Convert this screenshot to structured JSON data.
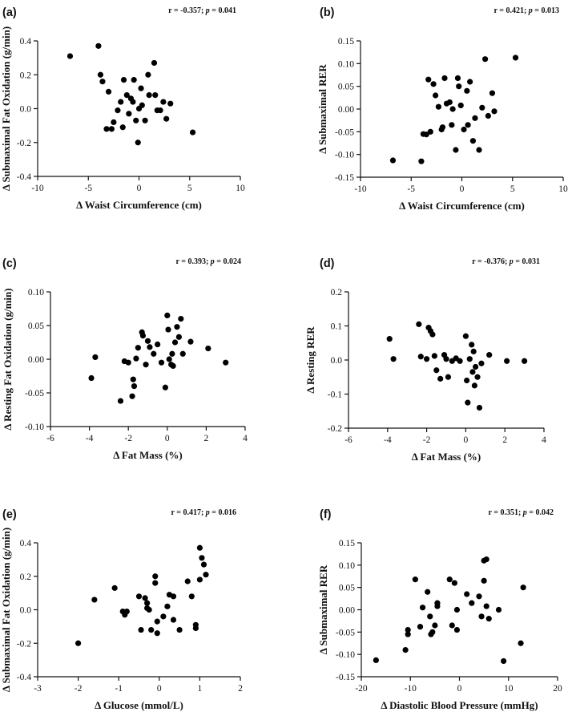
{
  "chart_data": [
    {
      "type": "scatter",
      "panel_label": "(a)",
      "stat": {
        "r": "r = -0.357; ",
        "p_symbol": "p",
        "p": " = 0.041"
      },
      "xlabel": "Δ Waist Circumference (cm)",
      "ylabel": "Δ Submaximal Fat Oxidation (g/min)",
      "xlim": [
        -10,
        10
      ],
      "ylim": [
        -0.4,
        0.4
      ],
      "xticks": [
        -10,
        -5,
        0,
        5,
        10
      ],
      "yticks": [
        -0.4,
        -0.2,
        0.0,
        0.2,
        0.4
      ],
      "xtick_labels": [
        "-10",
        "-5",
        "0",
        "5",
        "10"
      ],
      "ytick_labels": [
        "-0.4",
        "-0.2",
        "0.0",
        "0.2",
        "0.4"
      ],
      "points": [
        [
          -6.8,
          0.31
        ],
        [
          -4.0,
          0.37
        ],
        [
          -3.8,
          0.2
        ],
        [
          -3.6,
          0.16
        ],
        [
          -3.0,
          0.1
        ],
        [
          -3.2,
          -0.12
        ],
        [
          -2.7,
          -0.12
        ],
        [
          -2.5,
          -0.08
        ],
        [
          -2.1,
          -0.01
        ],
        [
          -1.8,
          0.04
        ],
        [
          -1.6,
          -0.11
        ],
        [
          -1.5,
          0.17
        ],
        [
          -1.2,
          0.08
        ],
        [
          -1.0,
          -0.03
        ],
        [
          -0.8,
          0.06
        ],
        [
          -0.6,
          0.04
        ],
        [
          -0.5,
          0.17
        ],
        [
          -0.3,
          -0.07
        ],
        [
          -0.1,
          -0.2
        ],
        [
          0.0,
          0.0
        ],
        [
          0.2,
          0.12
        ],
        [
          0.3,
          0.02
        ],
        [
          0.6,
          -0.07
        ],
        [
          0.9,
          0.2
        ],
        [
          1.0,
          0.08
        ],
        [
          1.5,
          0.27
        ],
        [
          1.6,
          0.08
        ],
        [
          1.8,
          -0.01
        ],
        [
          2.1,
          -0.01
        ],
        [
          2.4,
          0.04
        ],
        [
          2.7,
          -0.06
        ],
        [
          3.1,
          0.03
        ],
        [
          5.3,
          -0.14
        ]
      ]
    },
    {
      "type": "scatter",
      "panel_label": "(b)",
      "stat": {
        "r": "r = 0.421; ",
        "p_symbol": "p",
        "p": " = 0.013"
      },
      "xlabel": "Δ Waist Circumference (cm)",
      "ylabel": "Δ Submaximal RER",
      "xlim": [
        -10,
        10
      ],
      "ylim": [
        -0.15,
        0.15
      ],
      "xticks": [
        -10,
        -5,
        0,
        5,
        10
      ],
      "yticks": [
        -0.15,
        -0.1,
        -0.05,
        0.0,
        0.05,
        0.1,
        0.15
      ],
      "xtick_labels": [
        "-10",
        "-5",
        "0",
        "5",
        "10"
      ],
      "ytick_labels": [
        "-0.15",
        "-0.10",
        "-0.05",
        "0.00",
        "0.05",
        "0.10",
        "0.15"
      ],
      "points": [
        [
          -6.8,
          -0.113
        ],
        [
          -4.0,
          -0.115
        ],
        [
          -3.8,
          -0.055
        ],
        [
          -3.5,
          -0.056
        ],
        [
          -3.3,
          0.065
        ],
        [
          -3.1,
          -0.05
        ],
        [
          -2.8,
          0.055
        ],
        [
          -2.6,
          0.03
        ],
        [
          -2.3,
          0.005
        ],
        [
          -2.0,
          -0.045
        ],
        [
          -1.9,
          -0.04
        ],
        [
          -1.7,
          0.068
        ],
        [
          -1.5,
          0.012
        ],
        [
          -1.2,
          0.015
        ],
        [
          -1.0,
          -0.035
        ],
        [
          -0.9,
          0.0
        ],
        [
          -0.6,
          -0.09
        ],
        [
          -0.4,
          0.068
        ],
        [
          -0.3,
          0.05
        ],
        [
          -0.1,
          0.008
        ],
        [
          0.2,
          -0.045
        ],
        [
          0.5,
          0.04
        ],
        [
          0.6,
          -0.035
        ],
        [
          0.8,
          0.06
        ],
        [
          1.1,
          -0.07
        ],
        [
          1.3,
          -0.02
        ],
        [
          1.7,
          -0.09
        ],
        [
          2.0,
          0.003
        ],
        [
          2.3,
          0.11
        ],
        [
          2.6,
          -0.015
        ],
        [
          3.0,
          0.035
        ],
        [
          3.2,
          -0.005
        ],
        [
          5.3,
          0.113
        ]
      ]
    },
    {
      "type": "scatter",
      "panel_label": "(c)",
      "stat": {
        "r": "r = 0.393; ",
        "p_symbol": "p",
        "p": " = 0.024"
      },
      "xlabel": "Δ Fat Mass (%)",
      "ylabel": "Δ Resting Fat Oxidation (g/min)",
      "xlim": [
        -6,
        4
      ],
      "ylim": [
        -0.1,
        0.1
      ],
      "xticks": [
        -6,
        -4,
        -2,
        0,
        2,
        4
      ],
      "yticks": [
        -0.1,
        -0.05,
        0.0,
        0.05,
        0.1
      ],
      "xtick_labels": [
        "-6",
        "-4",
        "-2",
        "0",
        "2",
        "4"
      ],
      "ytick_labels": [
        "-0.10",
        "-0.05",
        "0.00",
        "0.05",
        "0.10"
      ],
      "points": [
        [
          -3.9,
          -0.028
        ],
        [
          -3.7,
          0.003
        ],
        [
          -2.4,
          -0.062
        ],
        [
          -2.2,
          -0.003
        ],
        [
          -2.0,
          -0.005
        ],
        [
          -1.8,
          -0.055
        ],
        [
          -1.75,
          -0.03
        ],
        [
          -1.7,
          -0.04
        ],
        [
          -1.6,
          0.001
        ],
        [
          -1.5,
          0.017
        ],
        [
          -1.3,
          0.04
        ],
        [
          -1.25,
          0.035
        ],
        [
          -1.1,
          -0.008
        ],
        [
          -1.0,
          0.027
        ],
        [
          -0.9,
          0.018
        ],
        [
          -0.7,
          0.008
        ],
        [
          -0.5,
          0.022
        ],
        [
          -0.3,
          -0.005
        ],
        [
          -0.1,
          -0.042
        ],
        [
          0.0,
          0.065
        ],
        [
          0.05,
          0.044
        ],
        [
          0.1,
          0.0
        ],
        [
          0.2,
          -0.008
        ],
        [
          0.25,
          0.008
        ],
        [
          0.3,
          -0.01
        ],
        [
          0.4,
          0.025
        ],
        [
          0.5,
          0.048
        ],
        [
          0.6,
          0.033
        ],
        [
          0.7,
          0.06
        ],
        [
          0.8,
          0.008
        ],
        [
          1.2,
          0.026
        ],
        [
          2.1,
          0.016
        ],
        [
          3.0,
          -0.005
        ]
      ]
    },
    {
      "type": "scatter",
      "panel_label": "(d)",
      "stat": {
        "r": "r = -0.376; ",
        "p_symbol": "p",
        "p": " = 0.031"
      },
      "xlabel": "Δ Fat Mass (%)",
      "ylabel": "Δ Resting RER",
      "xlim": [
        -6,
        4
      ],
      "ylim": [
        -0.2,
        0.2
      ],
      "xticks": [
        -6,
        -4,
        -2,
        0,
        2,
        4
      ],
      "yticks": [
        -0.2,
        -0.1,
        0.0,
        0.1,
        0.2
      ],
      "xtick_labels": [
        "-6",
        "-4",
        "-2",
        "0",
        "2",
        "4"
      ],
      "ytick_labels": [
        "-0.2",
        "-0.1",
        "0.0",
        "0.1",
        "0.2"
      ],
      "points": [
        [
          -3.9,
          0.062
        ],
        [
          -3.7,
          0.003
        ],
        [
          -2.4,
          0.105
        ],
        [
          -2.3,
          0.01
        ],
        [
          -2.0,
          0.003
        ],
        [
          -1.9,
          0.095
        ],
        [
          -1.8,
          0.085
        ],
        [
          -1.7,
          0.075
        ],
        [
          -1.6,
          0.012
        ],
        [
          -1.5,
          -0.03
        ],
        [
          -1.3,
          -0.055
        ],
        [
          -1.1,
          0.015
        ],
        [
          -1.0,
          0.003
        ],
        [
          -0.9,
          -0.05
        ],
        [
          -0.7,
          -0.003
        ],
        [
          -0.5,
          0.005
        ],
        [
          -0.3,
          -0.003
        ],
        [
          0.0,
          0.07
        ],
        [
          0.05,
          -0.06
        ],
        [
          0.1,
          -0.125
        ],
        [
          0.2,
          0.003
        ],
        [
          0.3,
          0.045
        ],
        [
          0.35,
          -0.035
        ],
        [
          0.4,
          0.025
        ],
        [
          0.45,
          -0.075
        ],
        [
          0.5,
          -0.02
        ],
        [
          0.6,
          -0.05
        ],
        [
          0.7,
          -0.14
        ],
        [
          0.8,
          -0.01
        ],
        [
          1.2,
          0.015
        ],
        [
          2.1,
          -0.003
        ],
        [
          3.0,
          -0.003
        ]
      ]
    },
    {
      "type": "scatter",
      "panel_label": "(e)",
      "stat": {
        "r": "r = 0.417; ",
        "p_symbol": "p",
        "p": " = 0.016"
      },
      "xlabel": "Δ Glucose (mmol/L)",
      "ylabel": "Δ Submaximal Fat Oxidation (g/min)",
      "xlim": [
        -3,
        2
      ],
      "ylim": [
        -0.4,
        0.4
      ],
      "xticks": [
        -3,
        -2,
        -1,
        0,
        1,
        2
      ],
      "yticks": [
        -0.4,
        -0.2,
        0.0,
        0.2,
        0.4
      ],
      "xtick_labels": [
        "-3",
        "-2",
        "-1",
        "0",
        "1",
        "2"
      ],
      "ytick_labels": [
        "-0.4",
        "-0.2",
        "0.0",
        "0.2",
        "0.4"
      ],
      "points": [
        [
          -2.0,
          -0.2
        ],
        [
          -1.6,
          0.06
        ],
        [
          -1.1,
          0.13
        ],
        [
          -0.9,
          -0.01
        ],
        [
          -0.85,
          -0.03
        ],
        [
          -0.8,
          -0.01
        ],
        [
          -0.5,
          0.08
        ],
        [
          -0.45,
          -0.12
        ],
        [
          -0.35,
          0.07
        ],
        [
          -0.3,
          0.04
        ],
        [
          -0.3,
          0.01
        ],
        [
          -0.25,
          0.0
        ],
        [
          -0.2,
          -0.12
        ],
        [
          -0.1,
          0.2
        ],
        [
          -0.1,
          0.16
        ],
        [
          -0.05,
          -0.07
        ],
        [
          -0.05,
          -0.14
        ],
        [
          0.1,
          -0.04
        ],
        [
          0.2,
          0.02
        ],
        [
          0.25,
          0.09
        ],
        [
          0.35,
          0.08
        ],
        [
          0.35,
          -0.06
        ],
        [
          0.5,
          -0.12
        ],
        [
          0.7,
          0.17
        ],
        [
          0.8,
          0.08
        ],
        [
          0.9,
          -0.11
        ],
        [
          0.9,
          -0.09
        ],
        [
          1.0,
          0.18
        ],
        [
          1.0,
          0.37
        ],
        [
          1.05,
          0.31
        ],
        [
          1.1,
          0.27
        ],
        [
          1.15,
          0.21
        ]
      ]
    },
    {
      "type": "scatter",
      "panel_label": "(f)",
      "stat": {
        "r": "r = 0.351; ",
        "p_symbol": "p",
        "p": " = 0.042"
      },
      "xlabel": "Δ Diastolic Blood Pressure (mmHg)",
      "ylabel": "Δ Submaximal RER",
      "xlim": [
        -20,
        20
      ],
      "ylim": [
        -0.15,
        0.15
      ],
      "xticks": [
        -20,
        -10,
        0,
        10,
        20
      ],
      "yticks": [
        -0.15,
        -0.1,
        -0.05,
        0.0,
        0.05,
        0.1,
        0.15
      ],
      "xtick_labels": [
        "-20",
        "-10",
        "0",
        "10",
        "20"
      ],
      "ytick_labels": [
        "-0.15",
        "-0.10",
        "-0.05",
        "0.00",
        "0.05",
        "0.10",
        "0.15"
      ],
      "points": [
        [
          -17,
          -0.113
        ],
        [
          -11,
          -0.09
        ],
        [
          -10.5,
          -0.045
        ],
        [
          -10.5,
          -0.055
        ],
        [
          -9,
          0.068
        ],
        [
          -8,
          -0.038
        ],
        [
          -7.5,
          0.005
        ],
        [
          -6.5,
          0.04
        ],
        [
          -6,
          -0.015
        ],
        [
          -5.8,
          -0.055
        ],
        [
          -5.5,
          -0.05
        ],
        [
          -5,
          -0.035
        ],
        [
          -4.5,
          0.015
        ],
        [
          -4.5,
          0.008
        ],
        [
          -2,
          0.068
        ],
        [
          -1.5,
          -0.035
        ],
        [
          -1,
          0.06
        ],
        [
          -0.5,
          0.0
        ],
        [
          -0.5,
          -0.045
        ],
        [
          1.5,
          0.035
        ],
        [
          2.5,
          0.015
        ],
        [
          4,
          0.03
        ],
        [
          4.5,
          -0.015
        ],
        [
          5,
          0.065
        ],
        [
          5,
          0.11
        ],
        [
          5.5,
          0.113
        ],
        [
          5.5,
          0.008
        ],
        [
          6,
          -0.02
        ],
        [
          8,
          0.0
        ],
        [
          9,
          -0.115
        ],
        [
          12.5,
          -0.075
        ],
        [
          13,
          0.05
        ]
      ]
    }
  ]
}
